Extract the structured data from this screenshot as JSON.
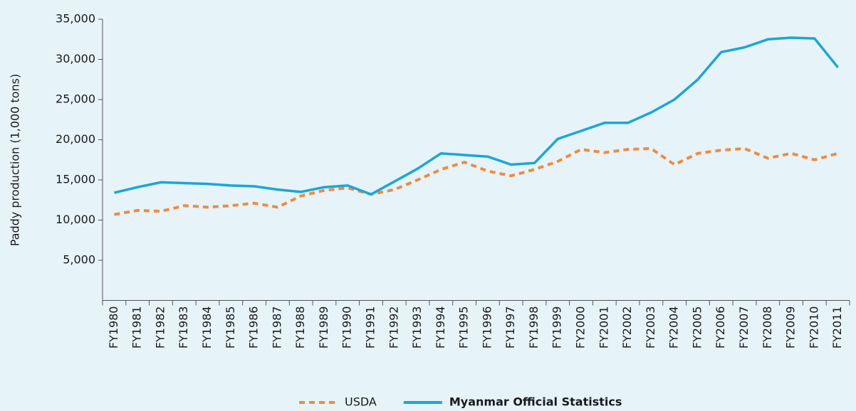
{
  "chart_data": {
    "type": "line",
    "ylabel": "Paddy production (1,000 tons)",
    "categories": [
      "FY1980",
      "FY1981",
      "FY1982",
      "FY1983",
      "FY1984",
      "FY1985",
      "FY1986",
      "FY1987",
      "FY1988",
      "FY1989",
      "FY1990",
      "FY1991",
      "FY1992",
      "FY1993",
      "FY1994",
      "FY1995",
      "FY1996",
      "FY1997",
      "FY1998",
      "FY1999",
      "FY2000",
      "FY2001",
      "FY2002",
      "FY2003",
      "FY2004",
      "FY2005",
      "FY2006",
      "FY2007",
      "FY2008",
      "FY2009",
      "FY2010",
      "FY2011"
    ],
    "series": [
      {
        "name": "USDA",
        "color": "#f28b3b",
        "dashed": true,
        "values": [
          10700,
          11200,
          11100,
          11800,
          11600,
          11800,
          12100,
          11600,
          13000,
          13700,
          14000,
          13200,
          13800,
          15000,
          16300,
          17200,
          16100,
          15500,
          16300,
          17300,
          18800,
          18400,
          18800,
          18900,
          16900,
          18300,
          18700,
          18900,
          17700,
          18300,
          17500,
          18300
        ]
      },
      {
        "name": "Myanmar Official Statistics",
        "color": "#1ba6d6",
        "dashed": false,
        "values": [
          13400,
          14100,
          14700,
          14600,
          14500,
          14300,
          14200,
          13800,
          13500,
          14100,
          14300,
          13200,
          14800,
          16400,
          18300,
          18100,
          17900,
          16900,
          17100,
          20100,
          21100,
          22100,
          22100,
          23400,
          25000,
          27500,
          30900,
          31500,
          32500,
          32700,
          32600,
          29000
        ]
      }
    ],
    "ylim": [
      0,
      35000
    ],
    "yticks": [
      {
        "value": 5000,
        "label": "5,000"
      },
      {
        "value": 10000,
        "label": "10,000"
      },
      {
        "value": 15000,
        "label": "15,000"
      },
      {
        "value": 20000,
        "label": "20,000"
      },
      {
        "value": 25000,
        "label": "25,000"
      },
      {
        "value": 30000,
        "label": "30,000"
      },
      {
        "value": 35000,
        "label": "35,000"
      }
    ],
    "legend": "bottom"
  }
}
